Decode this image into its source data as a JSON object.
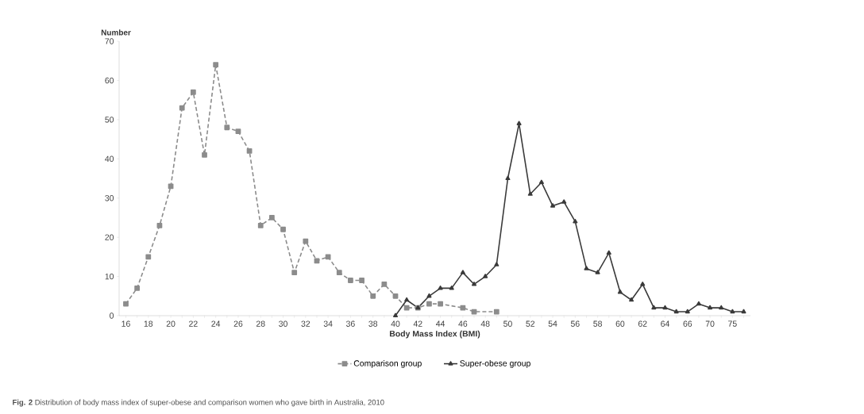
{
  "chart_data": {
    "type": "line",
    "xlabel": "Body Mass Index (BMI)",
    "ylabel": "Number",
    "categories": [
      "16",
      null,
      "18",
      null,
      "20",
      null,
      "22",
      null,
      "24",
      null,
      "26",
      null,
      "28",
      null,
      "30",
      null,
      "32",
      null,
      "34",
      null,
      "36",
      null,
      "38",
      null,
      "40",
      null,
      "42",
      null,
      "44",
      null,
      "46",
      null,
      "48",
      null,
      "50",
      null,
      "52",
      null,
      "54",
      null,
      "56",
      null,
      "58",
      null,
      "60",
      null,
      "62",
      null,
      "64",
      null,
      "66",
      null,
      "70",
      null,
      "75",
      null
    ],
    "series": [
      {
        "name": "Comparison group",
        "color": "#8c8c8c",
        "marker": "square",
        "line_style": "dashed",
        "values": [
          3,
          7,
          15,
          23,
          33,
          53,
          57,
          41,
          64,
          48,
          47,
          42,
          23,
          25,
          22,
          11,
          19,
          14,
          15,
          11,
          9,
          9,
          5,
          8,
          5,
          2,
          2,
          3,
          3,
          null,
          2,
          1,
          null,
          1,
          null,
          null,
          null,
          null,
          null,
          null,
          null,
          null,
          null,
          null,
          null,
          null,
          null,
          null,
          null,
          null,
          null,
          null,
          null,
          null,
          null,
          null
        ]
      },
      {
        "name": "Super-obese group",
        "color": "#3a3a3a",
        "marker": "triangle",
        "line_style": "solid",
        "values": [
          null,
          null,
          null,
          null,
          null,
          null,
          null,
          null,
          null,
          null,
          null,
          null,
          null,
          null,
          null,
          null,
          null,
          null,
          null,
          null,
          null,
          null,
          null,
          null,
          0,
          4,
          2,
          5,
          7,
          7,
          11,
          8,
          10,
          13,
          35,
          49,
          31,
          34,
          28,
          29,
          24,
          12,
          11,
          16,
          6,
          4,
          8,
          2,
          2,
          1,
          1,
          3,
          2,
          2,
          1,
          1
        ]
      }
    ],
    "ylim": [
      0,
      70
    ],
    "yticks": [
      0,
      10,
      20,
      30,
      40,
      50,
      60,
      70
    ],
    "legend": "bottom",
    "annotations": [
      "**Fig. 2** Distribution of body mass index of super-obese and comparison women who gave birth in Australia, 2010"
    ]
  }
}
